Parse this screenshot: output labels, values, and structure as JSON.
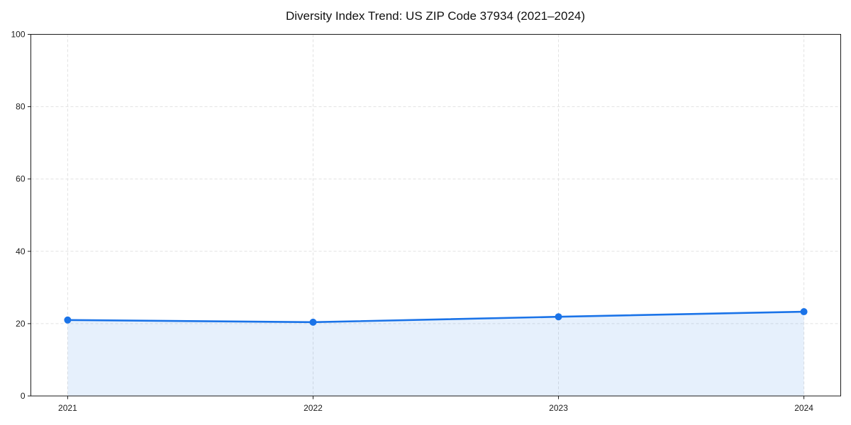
{
  "chart_data": {
    "type": "area",
    "title": "Diversity Index Trend: US ZIP Code 37934 (2021–2024)",
    "xlabel": "",
    "ylabel": "",
    "x": [
      2021,
      2022,
      2023,
      2024
    ],
    "categories": [
      "2021",
      "2022",
      "2023",
      "2024"
    ],
    "series": [
      {
        "name": "Diversity Index",
        "values": [
          21.0,
          20.4,
          21.9,
          23.3
        ]
      }
    ],
    "ylim": [
      0,
      100
    ],
    "yticks": [
      0,
      20,
      40,
      60,
      80,
      100
    ],
    "x_margin_fraction": 0.05,
    "grid": "on",
    "grid_style": "dashed",
    "legend": "none",
    "colors": {
      "line": "#1a73e8",
      "marker": "#1a73e8",
      "fill": "rgba(26,115,232,0.11)",
      "grid": "#e2e2e2",
      "spine": "#1a1a1a",
      "tick_label": "#1a1a1a",
      "title": "#111111",
      "background": "#ffffff"
    }
  }
}
